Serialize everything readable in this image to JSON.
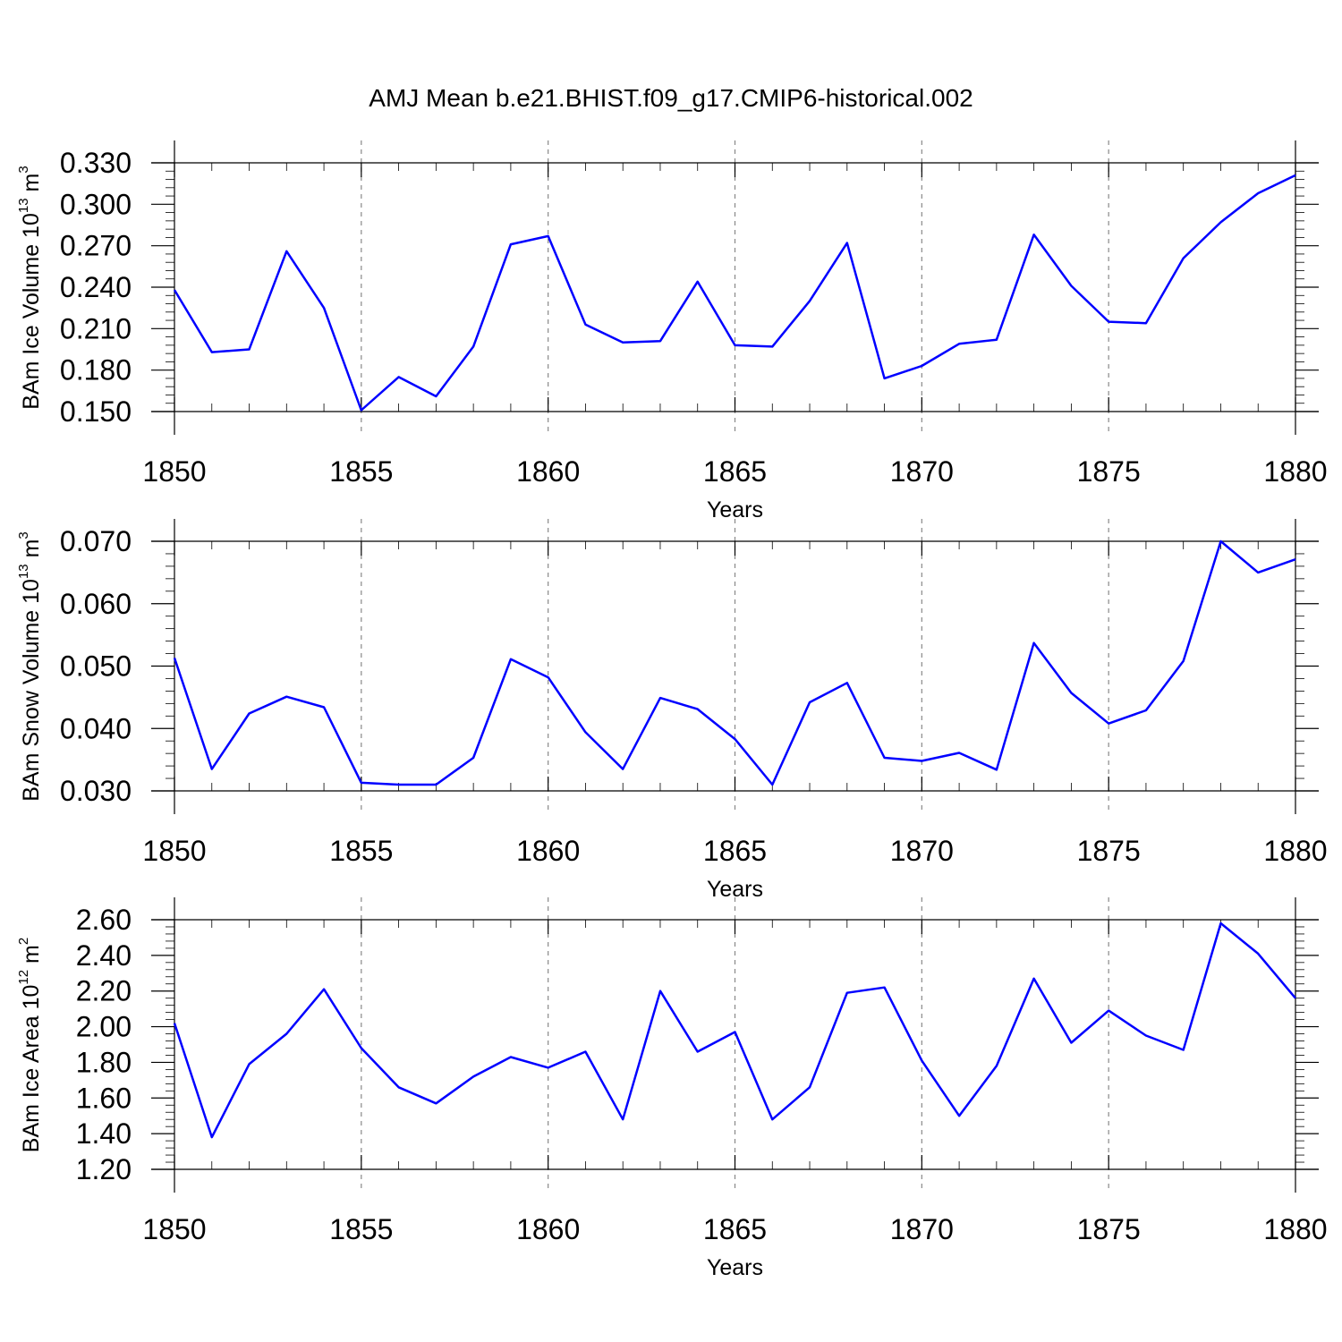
{
  "title": "AMJ Mean b.e21.BHIST.f09_g17.CMIP6-historical.002",
  "chart_data": [
    {
      "type": "line",
      "xlabel": "Years",
      "ylabel": {
        "text": "BAm Ice Volume 10",
        "exp": "13",
        "unit": " m",
        "unit_exp": "3"
      },
      "xlim": [
        1850,
        1880
      ],
      "xticks": [
        1850,
        1855,
        1860,
        1865,
        1870,
        1875,
        1880
      ],
      "xtick_labels": [
        "1850",
        "1855",
        "1860",
        "1865",
        "1870",
        "1875",
        "1880"
      ],
      "ylim": [
        0.15,
        0.33
      ],
      "yticks": [
        0.15,
        0.18,
        0.21,
        0.24,
        0.27,
        0.3,
        0.33
      ],
      "ytick_labels": [
        "0.150",
        "0.180",
        "0.210",
        "0.240",
        "0.270",
        "0.300",
        "0.330"
      ],
      "grid": "vertical dashed at major x ticks",
      "color": "#0000ff",
      "x": [
        1850,
        1851,
        1852,
        1853,
        1854,
        1855,
        1856,
        1857,
        1858,
        1859,
        1860,
        1861,
        1862,
        1863,
        1864,
        1865,
        1866,
        1867,
        1868,
        1869,
        1870,
        1871,
        1872,
        1873,
        1874,
        1875,
        1876,
        1877,
        1878,
        1879,
        1880
      ],
      "values": [
        0.238,
        0.193,
        0.195,
        0.266,
        0.225,
        0.151,
        0.175,
        0.161,
        0.197,
        0.271,
        0.277,
        0.213,
        0.2,
        0.201,
        0.244,
        0.198,
        0.197,
        0.23,
        0.272,
        0.174,
        0.183,
        0.199,
        0.202,
        0.278,
        0.241,
        0.215,
        0.214,
        0.261,
        0.287,
        0.308,
        0.321
      ]
    },
    {
      "type": "line",
      "xlabel": "Years",
      "ylabel": {
        "text": "BAm Snow Volume 10",
        "exp": "13",
        "unit": " m",
        "unit_exp": "3"
      },
      "xlim": [
        1850,
        1880
      ],
      "xticks": [
        1850,
        1855,
        1860,
        1865,
        1870,
        1875,
        1880
      ],
      "xtick_labels": [
        "1850",
        "1855",
        "1860",
        "1865",
        "1870",
        "1875",
        "1880"
      ],
      "ylim": [
        0.03,
        0.07
      ],
      "yticks": [
        0.03,
        0.04,
        0.05,
        0.06,
        0.07
      ],
      "ytick_labels": [
        "0.030",
        "0.040",
        "0.050",
        "0.060",
        "0.070"
      ],
      "grid": "vertical dashed at major x ticks",
      "color": "#0000ff",
      "x": [
        1850,
        1851,
        1852,
        1853,
        1854,
        1855,
        1856,
        1857,
        1858,
        1859,
        1860,
        1861,
        1862,
        1863,
        1864,
        1865,
        1866,
        1867,
        1868,
        1869,
        1870,
        1871,
        1872,
        1873,
        1874,
        1875,
        1876,
        1877,
        1878,
        1879,
        1880
      ],
      "values": [
        0.0513,
        0.0335,
        0.0424,
        0.0451,
        0.0434,
        0.0313,
        0.031,
        0.031,
        0.0353,
        0.0511,
        0.0482,
        0.0394,
        0.0335,
        0.0449,
        0.0431,
        0.0383,
        0.031,
        0.0442,
        0.0473,
        0.0353,
        0.0348,
        0.0361,
        0.0334,
        0.0537,
        0.0457,
        0.0408,
        0.0429,
        0.0508,
        0.07,
        0.065,
        0.0671
      ]
    },
    {
      "type": "line",
      "xlabel": "Years",
      "ylabel": {
        "text": "BAm Ice Area 10",
        "exp": "12",
        "unit": " m",
        "unit_exp": "2"
      },
      "xlim": [
        1850,
        1880
      ],
      "xticks": [
        1850,
        1855,
        1860,
        1865,
        1870,
        1875,
        1880
      ],
      "xtick_labels": [
        "1850",
        "1855",
        "1860",
        "1865",
        "1870",
        "1875",
        "1880"
      ],
      "ylim": [
        1.2,
        2.6
      ],
      "yticks": [
        1.2,
        1.4,
        1.6,
        1.8,
        2.0,
        2.2,
        2.4,
        2.6
      ],
      "ytick_labels": [
        "1.20",
        "1.40",
        "1.60",
        "1.80",
        "2.00",
        "2.20",
        "2.40",
        "2.60"
      ],
      "grid": "vertical dashed at major x ticks",
      "color": "#0000ff",
      "x": [
        1850,
        1851,
        1852,
        1853,
        1854,
        1855,
        1856,
        1857,
        1858,
        1859,
        1860,
        1861,
        1862,
        1863,
        1864,
        1865,
        1866,
        1867,
        1868,
        1869,
        1870,
        1871,
        1872,
        1873,
        1874,
        1875,
        1876,
        1877,
        1878,
        1879,
        1880
      ],
      "values": [
        2.02,
        1.38,
        1.79,
        1.96,
        2.21,
        1.88,
        1.66,
        1.57,
        1.72,
        1.83,
        1.77,
        1.86,
        1.48,
        2.2,
        1.86,
        1.97,
        1.48,
        1.66,
        2.19,
        2.22,
        1.81,
        1.5,
        1.78,
        2.27,
        1.91,
        2.09,
        1.95,
        1.87,
        2.58,
        2.41,
        2.16
      ]
    }
  ]
}
